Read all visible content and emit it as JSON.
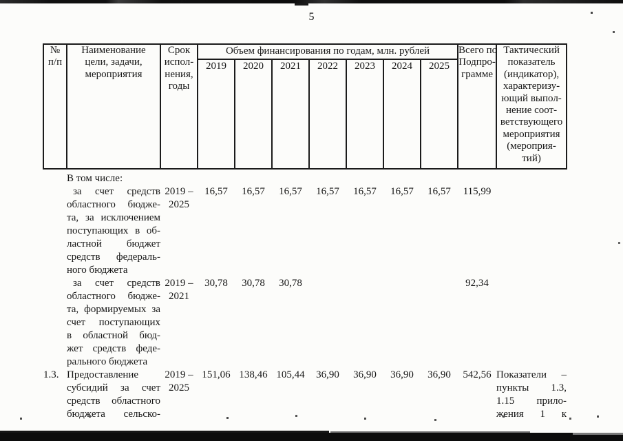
{
  "colors": {
    "ink": "#161616",
    "paper": "#fcfcfa"
  },
  "page": {
    "number": "5"
  },
  "table": {
    "header": {
      "num_lines": [
        "№",
        "п/п"
      ],
      "name_lines": [
        "Наименование",
        "цели, задачи,",
        "мероприятия"
      ],
      "term_lines": [
        "Срок",
        "испол-",
        "нения,",
        "годы"
      ],
      "volume_title": "Объем финансирования по годам, млн. рублей",
      "years": [
        "2019",
        "2020",
        "2021",
        "2022",
        "2023",
        "2024",
        "2025"
      ],
      "total_lines": [
        "Всего по",
        "Подпро-",
        "грамме"
      ],
      "indicator_lines": [
        "Тактический",
        "показатель",
        "(индикатор),",
        "характеризу-",
        "ющий выпол-",
        "нение соот-",
        "ветствующего",
        "мероприятия",
        "(мероприя-",
        "тий)"
      ]
    },
    "rows": [
      {
        "num": "",
        "name_lines": [
          "В том числе:"
        ],
        "term_lines": [],
        "values": [
          "",
          "",
          "",
          "",
          "",
          "",
          ""
        ],
        "total": "",
        "indicator_lines": []
      },
      {
        "num": "",
        "name_lines": [
          "за счет средств",
          "областного бюдже-",
          "та, за исключением",
          "поступающих в об-",
          "ластной бюджет",
          "средств федераль-",
          "ного бюджета"
        ],
        "term_lines": [
          "2019 –",
          "2025"
        ],
        "values": [
          "16,57",
          "16,57",
          "16,57",
          "16,57",
          "16,57",
          "16,57",
          "16,57"
        ],
        "total": "115,99",
        "indicator_lines": []
      },
      {
        "num": "",
        "name_lines": [
          "за счет средств",
          "областного бюдже-",
          "та, формируемых за",
          "счет поступающих",
          "в областной бюд-",
          "жет средств феде-",
          "рального бюджета"
        ],
        "term_lines": [
          "2019 –",
          "2021"
        ],
        "values": [
          "30,78",
          "30,78",
          "30,78",
          "",
          "",
          "",
          ""
        ],
        "total": "92,34",
        "indicator_lines": []
      },
      {
        "num": "1.3.",
        "name_lines": [
          "Предоставление",
          "субсидий за счет",
          "средств областного",
          "бюджета сельско-"
        ],
        "term_lines": [
          "2019 –",
          "2025"
        ],
        "values": [
          "151,06",
          "138,46",
          "105,44",
          "36,90",
          "36,90",
          "36,90",
          "36,90"
        ],
        "total": "542,56",
        "indicator_lines": [
          "Показатели –",
          "пункты 1.3,",
          "1.15 прило-",
          "жения 1 к"
        ]
      }
    ]
  }
}
